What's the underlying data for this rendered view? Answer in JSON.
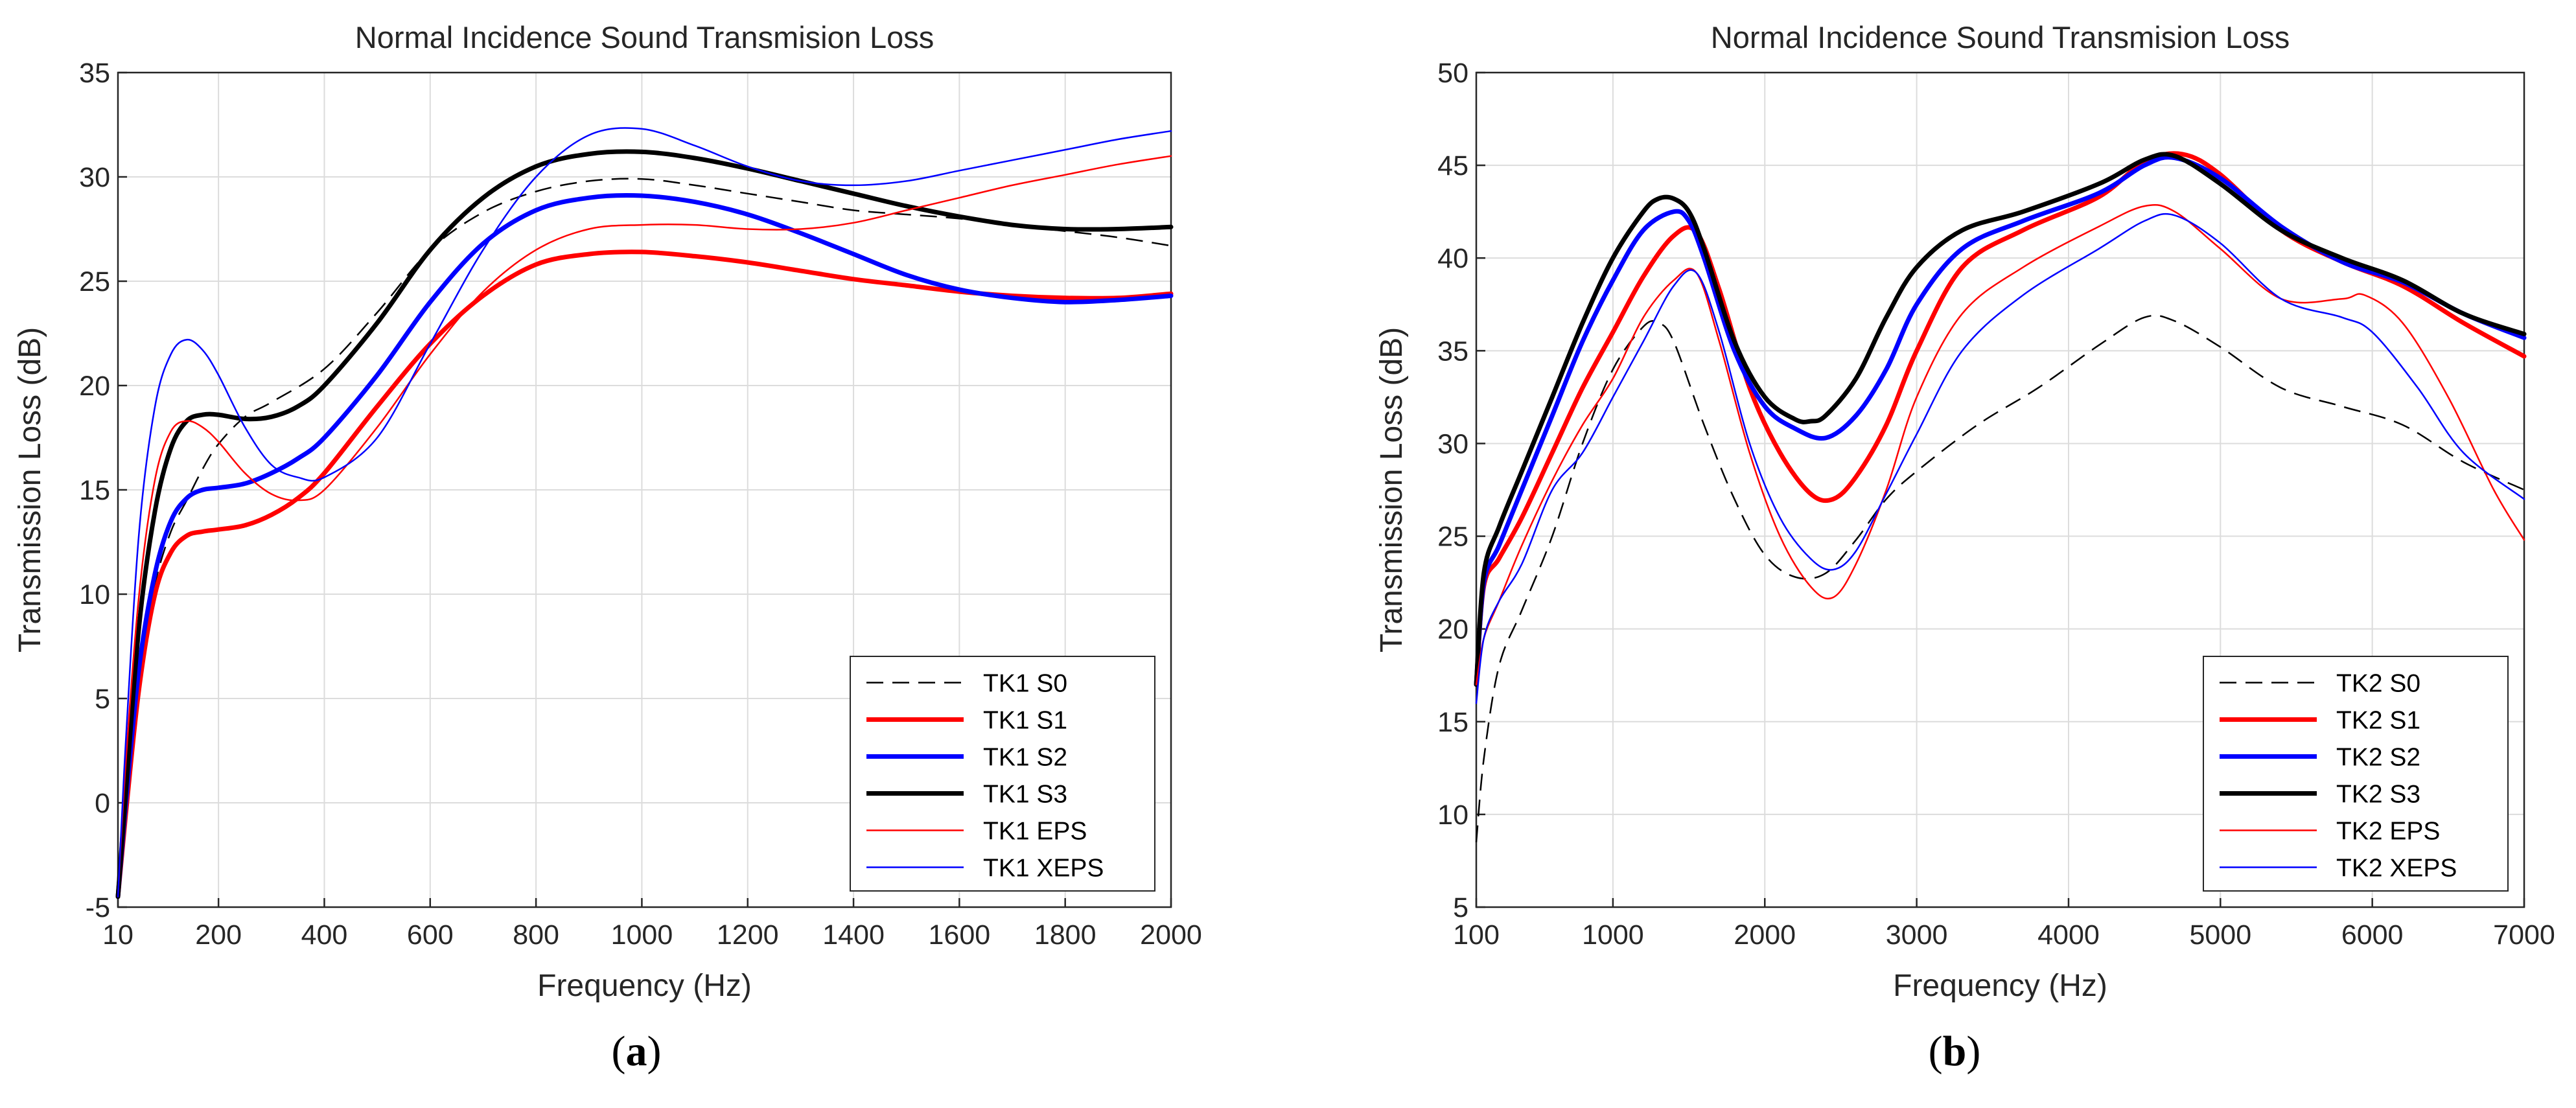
{
  "colors": {
    "black": "#000000",
    "red": "#ff0000",
    "blue": "#0000ff",
    "grid": "#dcdcdc"
  },
  "chart_data": [
    {
      "type": "line",
      "panel_label": "a",
      "title": "Normal Incidence Sound Transmision Loss",
      "xlabel": "Frequency (Hz)",
      "ylabel": "Transmission Loss (dB)",
      "xlim": [
        10,
        2000
      ],
      "ylim": [
        -5,
        35
      ],
      "xticks": [
        10,
        200,
        400,
        600,
        800,
        1000,
        1200,
        1400,
        1600,
        1800,
        2000
      ],
      "yticks": [
        -5,
        0,
        5,
        10,
        15,
        20,
        25,
        30,
        35
      ],
      "grid": true,
      "legend_position": "bottom-right",
      "series": [
        {
          "name": "TK1 S0",
          "color": "#000000",
          "width": 2.5,
          "dash": "26,14",
          "x": [
            10,
            25,
            50,
            80,
            110,
            140,
            170,
            200,
            250,
            300,
            400,
            500,
            600,
            700,
            800,
            900,
            1000,
            1100,
            1200,
            1300,
            1400,
            1500,
            1600,
            1700,
            1800,
            1900,
            2000
          ],
          "y": [
            -4.5,
            0,
            6.5,
            10.5,
            13,
            14.5,
            16,
            17.2,
            18.5,
            19.2,
            20.8,
            23.5,
            26.5,
            28.3,
            29.3,
            29.8,
            29.9,
            29.6,
            29.2,
            28.8,
            28.4,
            28.2,
            28.0,
            27.7,
            27.4,
            27.1,
            26.7
          ]
        },
        {
          "name": "TK1 S1",
          "color": "#ff0000",
          "width": 7,
          "x": [
            10,
            25,
            50,
            80,
            110,
            140,
            170,
            200,
            250,
            300,
            350,
            400,
            500,
            600,
            700,
            800,
            900,
            1000,
            1100,
            1200,
            1300,
            1400,
            1500,
            1600,
            1700,
            1800,
            1900,
            2000
          ],
          "y": [
            -4.5,
            -0.5,
            5.5,
            10,
            12,
            12.8,
            13,
            13.1,
            13.3,
            13.8,
            14.6,
            15.8,
            19,
            22,
            24.3,
            25.8,
            26.3,
            26.4,
            26.2,
            25.9,
            25.5,
            25.1,
            24.8,
            24.5,
            24.3,
            24.2,
            24.2,
            24.4
          ]
        },
        {
          "name": "TK1 S2",
          "color": "#0000ff",
          "width": 7,
          "x": [
            10,
            25,
            50,
            80,
            110,
            140,
            170,
            200,
            250,
            300,
            350,
            400,
            500,
            600,
            700,
            800,
            900,
            1000,
            1100,
            1200,
            1300,
            1400,
            1500,
            1600,
            1700,
            1800,
            1900,
            2000
          ],
          "y": [
            -4.5,
            0,
            6.5,
            11,
            13.5,
            14.6,
            15,
            15.1,
            15.3,
            15.8,
            16.5,
            17.5,
            20.5,
            24,
            26.8,
            28.4,
            29.0,
            29.1,
            28.8,
            28.2,
            27.3,
            26.3,
            25.3,
            24.6,
            24.2,
            24.0,
            24.1,
            24.3
          ]
        },
        {
          "name": "TK1 S3",
          "color": "#000000",
          "width": 7,
          "x": [
            10,
            25,
            50,
            80,
            110,
            140,
            170,
            200,
            250,
            300,
            350,
            400,
            500,
            600,
            700,
            800,
            900,
            1000,
            1100,
            1200,
            1300,
            1400,
            1500,
            1600,
            1700,
            1800,
            1900,
            2000
          ],
          "y": [
            -4.5,
            0.5,
            8.5,
            14,
            17,
            18.3,
            18.6,
            18.6,
            18.4,
            18.5,
            19,
            20,
            23,
            26.5,
            29,
            30.5,
            31.1,
            31.2,
            30.9,
            30.4,
            29.8,
            29.2,
            28.6,
            28.1,
            27.7,
            27.5,
            27.5,
            27.6
          ]
        },
        {
          "name": "TK1 EPS",
          "color": "#ff0000",
          "width": 2.5,
          "x": [
            10,
            25,
            50,
            80,
            110,
            140,
            170,
            200,
            250,
            300,
            350,
            400,
            500,
            600,
            700,
            800,
            900,
            1000,
            1100,
            1200,
            1300,
            1400,
            1500,
            1600,
            1700,
            1800,
            1900,
            2000
          ],
          "y": [
            -4.5,
            2,
            10,
            15.5,
            17.8,
            18.3,
            18,
            17.3,
            15.8,
            14.8,
            14.5,
            15,
            18,
            21.5,
            24.5,
            26.5,
            27.5,
            27.7,
            27.7,
            27.5,
            27.5,
            27.8,
            28.4,
            29,
            29.6,
            30.1,
            30.6,
            31
          ]
        },
        {
          "name": "TK1 XEPS",
          "color": "#0000ff",
          "width": 2.5,
          "x": [
            10,
            25,
            50,
            80,
            110,
            140,
            170,
            200,
            250,
            300,
            350,
            400,
            500,
            600,
            700,
            800,
            900,
            1000,
            1100,
            1200,
            1300,
            1400,
            1500,
            1600,
            1700,
            1800,
            1900,
            2000
          ],
          "y": [
            -4.5,
            3,
            13,
            19,
            21.5,
            22.2,
            21.7,
            20.5,
            18,
            16.2,
            15.6,
            15.6,
            17.5,
            22,
            26.5,
            30,
            32,
            32.3,
            31.5,
            30.5,
            29.8,
            29.6,
            29.8,
            30.3,
            30.8,
            31.3,
            31.8,
            32.2
          ]
        }
      ]
    },
    {
      "type": "line",
      "panel_label": "b",
      "title": "Normal Incidence Sound Transmision Loss",
      "xlabel": "Frequency (Hz)",
      "ylabel": "Transmission Loss (dB)",
      "xlim": [
        100,
        7000
      ],
      "ylim": [
        5,
        50
      ],
      "xticks": [
        100,
        1000,
        2000,
        3000,
        4000,
        5000,
        6000,
        7000
      ],
      "yticks": [
        5,
        10,
        15,
        20,
        25,
        30,
        35,
        40,
        45,
        50
      ],
      "grid": true,
      "legend_position": "bottom-right",
      "series": [
        {
          "name": "TK2 S0",
          "color": "#000000",
          "width": 2.5,
          "dash": "26,14",
          "x": [
            100,
            150,
            250,
            400,
            600,
            800,
            1000,
            1200,
            1300,
            1400,
            1600,
            1800,
            2000,
            2200,
            2400,
            2600,
            2800,
            3000,
            3400,
            3800,
            4200,
            4500,
            4700,
            5000,
            5400,
            5800,
            6200,
            6600,
            7000
          ],
          "y": [
            8.5,
            13,
            18,
            21,
            25,
            30,
            34,
            36.3,
            36.5,
            35.5,
            31,
            27,
            24,
            22.8,
            23,
            24.8,
            27,
            28.5,
            31,
            33,
            35.3,
            36.8,
            36.6,
            35.2,
            33,
            32,
            31,
            29,
            27.5
          ]
        },
        {
          "name": "TK2 S1",
          "color": "#ff0000",
          "width": 7,
          "x": [
            100,
            150,
            250,
            400,
            600,
            800,
            1000,
            1200,
            1400,
            1550,
            1700,
            1900,
            2100,
            2300,
            2450,
            2600,
            2800,
            3000,
            3300,
            3700,
            4200,
            4500,
            4750,
            5000,
            5400,
            5800,
            6200,
            6600,
            7000
          ],
          "y": [
            17,
            22.3,
            23.8,
            26,
            29.5,
            33,
            36,
            39,
            41.2,
            41.4,
            38.3,
            33,
            29.5,
            27.3,
            27,
            28.2,
            31,
            35,
            39.5,
            41.5,
            43.3,
            45.2,
            45.6,
            44.5,
            41.5,
            39.8,
            38.5,
            36.5,
            34.7
          ]
        },
        {
          "name": "TK2 S2",
          "color": "#0000ff",
          "width": 7,
          "x": [
            100,
            150,
            250,
            400,
            600,
            800,
            1000,
            1200,
            1400,
            1500,
            1600,
            1800,
            2000,
            2200,
            2400,
            2600,
            2800,
            3000,
            3300,
            3700,
            4200,
            4500,
            4700,
            5000,
            5400,
            5800,
            6200,
            6600,
            7000
          ],
          "y": [
            17,
            22.5,
            24.5,
            27.5,
            31.5,
            35.5,
            38.8,
            41.5,
            42.5,
            42,
            40,
            35,
            32,
            30.8,
            30.3,
            31.5,
            34,
            37.5,
            40.5,
            42,
            43.5,
            45,
            45.4,
            44.3,
            41.7,
            39.8,
            38.7,
            37,
            35.7
          ]
        },
        {
          "name": "TK2 S3",
          "color": "#000000",
          "width": 7,
          "x": [
            100,
            150,
            250,
            400,
            600,
            800,
            1000,
            1200,
            1300,
            1400,
            1500,
            1600,
            1800,
            2000,
            2200,
            2300,
            2400,
            2600,
            2800,
            3000,
            3300,
            3700,
            4200,
            4500,
            4700,
            5000,
            5400,
            5800,
            6200,
            6600,
            7000
          ],
          "y": [
            17,
            23,
            25.5,
            28.5,
            32.5,
            36.5,
            40,
            42.5,
            43.2,
            43.2,
            42.5,
            40.5,
            35.5,
            32.5,
            31.3,
            31.2,
            31.5,
            33.5,
            36.8,
            39.5,
            41.5,
            42.5,
            44,
            45.3,
            45.5,
            44,
            41.5,
            40,
            38.8,
            37,
            35.9
          ]
        },
        {
          "name": "TK2 EPS",
          "color": "#ff0000",
          "width": 2.5,
          "x": [
            100,
            150,
            250,
            400,
            600,
            800,
            1000,
            1200,
            1400,
            1550,
            1700,
            1900,
            2100,
            2300,
            2450,
            2600,
            2800,
            3000,
            3300,
            3700,
            4200,
            4500,
            4700,
            5000,
            5400,
            5800,
            5950,
            6200,
            6500,
            6800,
            7000
          ],
          "y": [
            17,
            19.5,
            21.5,
            24.5,
            28,
            31,
            33.5,
            36.8,
            38.8,
            39.2,
            35.5,
            29.5,
            25,
            22.3,
            21.7,
            23.5,
            27.5,
            32.5,
            37,
            39.5,
            41.7,
            42.8,
            42.5,
            40.5,
            37.8,
            37.8,
            38,
            36.5,
            32.5,
            27.5,
            24.8
          ]
        },
        {
          "name": "TK2 XEPS",
          "color": "#0000ff",
          "width": 2.5,
          "x": [
            100,
            150,
            250,
            400,
            600,
            800,
            1000,
            1200,
            1400,
            1550,
            1700,
            1900,
            2100,
            2300,
            2450,
            2600,
            2800,
            3000,
            3300,
            3700,
            4200,
            4500,
            4700,
            5000,
            5400,
            5800,
            6000,
            6300,
            6600,
            7000
          ],
          "y": [
            16,
            19.5,
            21.5,
            23.5,
            27.5,
            29.5,
            32.5,
            35.5,
            38.5,
            39.2,
            36,
            30,
            26,
            23.8,
            23.2,
            24.2,
            27.3,
            30.5,
            35,
            38,
            40.5,
            42,
            42.3,
            40.8,
            37.8,
            36.8,
            36,
            33,
            29.5,
            27
          ]
        }
      ]
    }
  ]
}
